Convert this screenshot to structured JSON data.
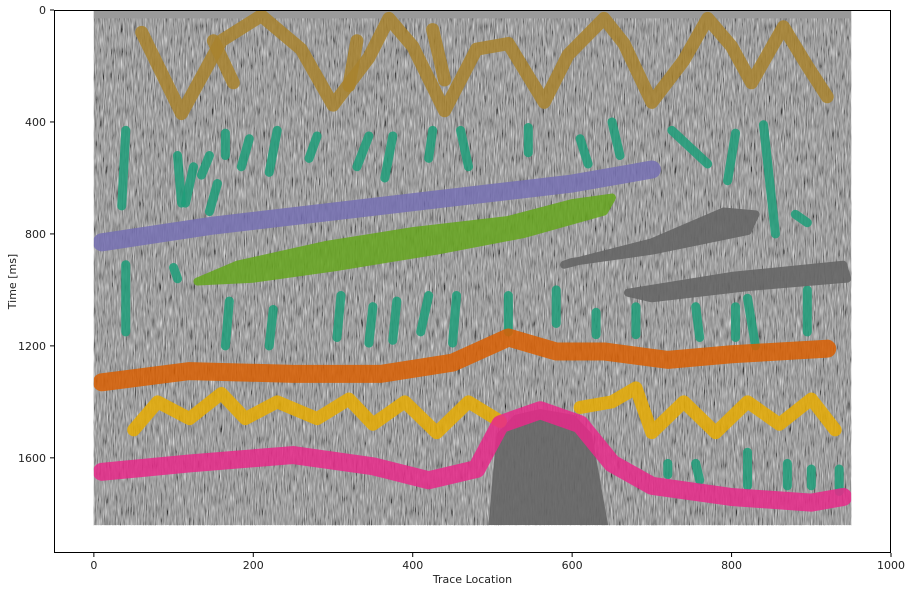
{
  "chart_data": {
    "type": "heatmap",
    "title": "",
    "xlabel": "Trace Location",
    "ylabel": "Time [ms]",
    "xlim": [
      -50,
      1000
    ],
    "ylim": [
      1940,
      0
    ],
    "xticks": [
      0,
      200,
      400,
      600,
      800,
      1000
    ],
    "yticks": [
      0,
      400,
      800,
      1200,
      1600
    ],
    "image_extent": {
      "x": [
        0,
        950
      ],
      "y": [
        0,
        1840
      ]
    },
    "grid": false,
    "legend": "none",
    "background": "grayscale seismic amplitude section",
    "colors": {
      "brown": "#a8822e",
      "teal": "#1f9e7a",
      "purple": "#7570b3",
      "green": "#66a61e",
      "gray": "#666666",
      "orange": "#d95f02",
      "yellow": "#e6ab02",
      "magenta": "#e7298a"
    },
    "annotations": [
      {
        "class": "brown",
        "kind": "zigzag",
        "points": [
          [
            60,
            80
          ],
          [
            110,
            370
          ],
          [
            160,
            110
          ],
          [
            210,
            20
          ],
          [
            260,
            140
          ],
          [
            300,
            340
          ],
          [
            345,
            170
          ],
          [
            370,
            30
          ],
          [
            400,
            130
          ],
          [
            440,
            360
          ],
          [
            480,
            140
          ],
          [
            520,
            120
          ],
          [
            565,
            330
          ],
          [
            595,
            160
          ],
          [
            640,
            30
          ],
          [
            665,
            120
          ],
          [
            700,
            330
          ],
          [
            740,
            180
          ],
          [
            770,
            30
          ],
          [
            800,
            130
          ],
          [
            825,
            260
          ],
          [
            865,
            60
          ],
          [
            895,
            200
          ],
          [
            920,
            310
          ]
        ]
      },
      {
        "class": "brown",
        "kind": "zigzag",
        "points": [
          [
            150,
            110
          ],
          [
            175,
            260
          ]
        ]
      },
      {
        "class": "brown",
        "kind": "zigzag",
        "points": [
          [
            330,
            110
          ],
          [
            320,
            270
          ]
        ]
      },
      {
        "class": "brown",
        "kind": "zigzag",
        "points": [
          [
            425,
            70
          ],
          [
            440,
            250
          ]
        ]
      },
      {
        "class": "teal",
        "kind": "dashes",
        "segments": [
          [
            [
              40,
              430
            ],
            [
              35,
              700
            ]
          ],
          [
            [
              105,
              520
            ],
            [
              110,
              690
            ]
          ],
          [
            [
              125,
              560
            ],
            [
              115,
              690
            ]
          ],
          [
            [
              145,
              520
            ],
            [
              135,
              590
            ]
          ],
          [
            [
              155,
              620
            ],
            [
              145,
              720
            ]
          ],
          [
            [
              165,
              440
            ],
            [
              165,
              520
            ]
          ],
          [
            [
              195,
              460
            ],
            [
              185,
              560
            ]
          ],
          [
            [
              230,
              430
            ],
            [
              220,
              580
            ]
          ],
          [
            [
              280,
              450
            ],
            [
              270,
              530
            ]
          ],
          [
            [
              345,
              450
            ],
            [
              330,
              560
            ]
          ],
          [
            [
              375,
              450
            ],
            [
              365,
              600
            ]
          ],
          [
            [
              425,
              430
            ],
            [
              420,
              530
            ]
          ],
          [
            [
              460,
              430
            ],
            [
              470,
              560
            ]
          ],
          [
            [
              545,
              420
            ],
            [
              545,
              510
            ]
          ],
          [
            [
              610,
              460
            ],
            [
              620,
              550
            ]
          ],
          [
            [
              650,
              400
            ],
            [
              660,
              520
            ]
          ],
          [
            [
              805,
              440
            ],
            [
              795,
              610
            ]
          ],
          [
            [
              840,
              410
            ],
            [
              855,
              800
            ]
          ],
          [
            [
              880,
              730
            ],
            [
              895,
              760
            ]
          ],
          [
            [
              725,
              430
            ],
            [
              770,
              550
            ]
          ],
          [
            [
              100,
              920
            ],
            [
              105,
              960
            ]
          ],
          [
            [
              40,
              910
            ],
            [
              40,
              1150
            ]
          ],
          [
            [
              170,
              1040
            ],
            [
              165,
              1200
            ]
          ],
          [
            [
              225,
              1070
            ],
            [
              220,
              1200
            ]
          ],
          [
            [
              310,
              1020
            ],
            [
              305,
              1170
            ]
          ],
          [
            [
              350,
              1060
            ],
            [
              345,
              1190
            ]
          ],
          [
            [
              380,
              1040
            ],
            [
              375,
              1180
            ]
          ],
          [
            [
              420,
              1020
            ],
            [
              410,
              1150
            ]
          ],
          [
            [
              455,
              1020
            ],
            [
              450,
              1190
            ]
          ],
          [
            [
              520,
              1020
            ],
            [
              520,
              1150
            ]
          ],
          [
            [
              580,
              1000
            ],
            [
              580,
              1120
            ]
          ],
          [
            [
              630,
              1080
            ],
            [
              630,
              1160
            ]
          ],
          [
            [
              680,
              1060
            ],
            [
              680,
              1160
            ]
          ],
          [
            [
              755,
              1060
            ],
            [
              760,
              1170
            ]
          ],
          [
            [
              820,
              1030
            ],
            [
              830,
              1200
            ]
          ],
          [
            [
              805,
              1060
            ],
            [
              805,
              1170
            ]
          ],
          [
            [
              895,
              1000
            ],
            [
              895,
              1150
            ]
          ],
          [
            [
              720,
              1620
            ],
            [
              720,
              1660
            ]
          ],
          [
            [
              755,
              1620
            ],
            [
              760,
              1680
            ]
          ],
          [
            [
              820,
              1580
            ],
            [
              820,
              1700
            ]
          ],
          [
            [
              870,
              1620
            ],
            [
              870,
              1700
            ]
          ],
          [
            [
              900,
              1640
            ],
            [
              900,
              1700
            ]
          ],
          [
            [
              935,
              1640
            ],
            [
              935,
              1720
            ]
          ]
        ]
      },
      {
        "class": "purple",
        "kind": "band",
        "points": [
          [
            10,
            830
          ],
          [
            150,
            770
          ],
          [
            300,
            720
          ],
          [
            420,
            680
          ],
          [
            540,
            640
          ],
          [
            600,
            620
          ],
          [
            700,
            570
          ]
        ]
      },
      {
        "class": "green",
        "kind": "blob",
        "points": [
          [
            130,
            970
          ],
          [
            180,
            910
          ],
          [
            290,
            840
          ],
          [
            400,
            790
          ],
          [
            520,
            750
          ],
          [
            600,
            690
          ],
          [
            650,
            670
          ],
          [
            640,
            720
          ],
          [
            540,
            800
          ],
          [
            430,
            860
          ],
          [
            300,
            920
          ],
          [
            200,
            960
          ]
        ]
      },
      {
        "class": "gray",
        "kind": "blob",
        "points": [
          [
            590,
            910
          ],
          [
            700,
            830
          ],
          [
            790,
            720
          ],
          [
            830,
            730
          ],
          [
            820,
            790
          ],
          [
            700,
            860
          ],
          [
            600,
            900
          ]
        ]
      },
      {
        "class": "gray",
        "kind": "blob",
        "points": [
          [
            670,
            1010
          ],
          [
            800,
            950
          ],
          [
            940,
            910
          ],
          [
            945,
            960
          ],
          [
            820,
            990
          ],
          [
            700,
            1030
          ]
        ]
      },
      {
        "class": "gray",
        "kind": "blob",
        "points": [
          [
            500,
            1840
          ],
          [
            510,
            1520
          ],
          [
            530,
            1460
          ],
          [
            560,
            1440
          ],
          [
            600,
            1460
          ],
          [
            620,
            1520
          ],
          [
            640,
            1840
          ]
        ]
      },
      {
        "class": "orange",
        "kind": "band",
        "points": [
          [
            10,
            1330
          ],
          [
            120,
            1290
          ],
          [
            250,
            1300
          ],
          [
            360,
            1300
          ],
          [
            450,
            1260
          ],
          [
            520,
            1170
          ],
          [
            580,
            1220
          ],
          [
            640,
            1220
          ],
          [
            720,
            1250
          ],
          [
            800,
            1230
          ],
          [
            920,
            1210
          ]
        ]
      },
      {
        "class": "yellow",
        "kind": "zigzag",
        "points": [
          [
            50,
            1500
          ],
          [
            80,
            1400
          ],
          [
            120,
            1460
          ],
          [
            160,
            1370
          ],
          [
            190,
            1460
          ],
          [
            230,
            1400
          ],
          [
            280,
            1460
          ],
          [
            320,
            1390
          ],
          [
            350,
            1480
          ],
          [
            390,
            1400
          ],
          [
            430,
            1510
          ],
          [
            470,
            1400
          ],
          [
            510,
            1470
          ]
        ]
      },
      {
        "class": "yellow",
        "kind": "zigzag",
        "points": [
          [
            610,
            1420
          ],
          [
            650,
            1400
          ],
          [
            680,
            1350
          ],
          [
            700,
            1510
          ],
          [
            740,
            1400
          ],
          [
            780,
            1510
          ],
          [
            820,
            1400
          ],
          [
            860,
            1480
          ],
          [
            900,
            1390
          ],
          [
            930,
            1500
          ]
        ]
      },
      {
        "class": "magenta",
        "kind": "band",
        "points": [
          [
            10,
            1650
          ],
          [
            120,
            1620
          ],
          [
            250,
            1590
          ],
          [
            350,
            1630
          ],
          [
            420,
            1680
          ],
          [
            480,
            1640
          ],
          [
            510,
            1480
          ],
          [
            560,
            1430
          ],
          [
            610,
            1480
          ],
          [
            650,
            1620
          ],
          [
            700,
            1700
          ],
          [
            800,
            1740
          ],
          [
            900,
            1760
          ],
          [
            940,
            1740
          ]
        ]
      }
    ]
  }
}
